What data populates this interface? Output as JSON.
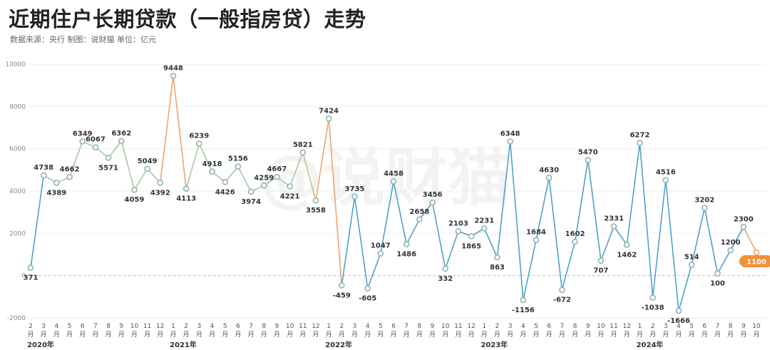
{
  "header": {
    "title": "近期住户长期贷款（一般指房贷）走势",
    "source_line": "数据来源：央行   制图：说财猫   单位：亿元"
  },
  "watermark": "@说财猫",
  "colors": {
    "line_blue": "#4fa3c4",
    "line_orange": "#f0a46a",
    "line_green": "#a9c99a",
    "point_fill": "#ffffff",
    "point_stroke": "#8fb3b0",
    "zero_line": "#e7a9a9",
    "grid": "#eeeeee",
    "highlight_badge": "#f0903a"
  },
  "chart_data": {
    "type": "line",
    "title": "近期住户长期贷款（一般指房贷）走势",
    "unit": "亿元",
    "ylim": [
      -2000,
      10000
    ],
    "yticks": [
      -2000,
      0,
      2000,
      4000,
      6000,
      8000,
      10000
    ],
    "grid": true,
    "x": [
      "2月",
      "3月",
      "4月",
      "5月",
      "6月",
      "7月",
      "8月",
      "9月",
      "10月",
      "11月",
      "12月",
      "1月",
      "2月",
      "3月",
      "4月",
      "5月",
      "6月",
      "7月",
      "8月",
      "9月",
      "10月",
      "11月",
      "12月",
      "1月",
      "2月",
      "3月",
      "4月",
      "5月",
      "6月",
      "7月",
      "8月",
      "9月",
      "10月",
      "11月",
      "12月",
      "1月",
      "2月",
      "3月",
      "4月",
      "5月",
      "6月",
      "7月",
      "8月",
      "9月",
      "10月",
      "11月",
      "12月",
      "1月",
      "2月",
      "3月",
      "4月",
      "5月",
      "6月",
      "7月",
      "8月",
      "9月",
      "10月"
    ],
    "years": [
      {
        "label": "2020年",
        "start_index": 0
      },
      {
        "label": "2021年",
        "start_index": 11
      },
      {
        "label": "2022年",
        "start_index": 23
      },
      {
        "label": "2023年",
        "start_index": 35
      },
      {
        "label": "2024年",
        "start_index": 47
      }
    ],
    "series": [
      {
        "values": [
          371,
          4738,
          4389,
          4662,
          6349,
          6067,
          5571,
          6362,
          4059,
          5049,
          4392,
          9448,
          4113,
          6239,
          4918,
          4426,
          5156,
          3974,
          4259,
          4667,
          4221,
          5821,
          3558,
          7424,
          -459,
          3735,
          -605,
          1047,
          4458,
          1486,
          2658,
          3456,
          332,
          2103,
          1865,
          2231,
          863,
          6348,
          -1156,
          1684,
          4630,
          -672,
          1602,
          5470,
          707,
          2331,
          1462,
          6272,
          -1038,
          4516,
          -1666,
          514,
          3202,
          100,
          1200,
          2300,
          1100
        ]
      }
    ],
    "highlight_index": 56
  }
}
